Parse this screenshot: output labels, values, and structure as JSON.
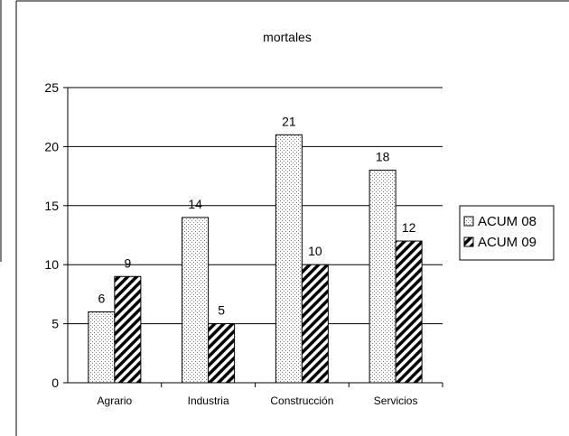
{
  "chart_data": {
    "type": "bar",
    "title": "mortales",
    "categories": [
      "Agrario",
      "Industria",
      "Construcción",
      "Servicios"
    ],
    "series": [
      {
        "name": "ACUM 08",
        "values": [
          6,
          14,
          21,
          18
        ],
        "pattern": "dotted"
      },
      {
        "name": "ACUM 09",
        "values": [
          9,
          5,
          10,
          12
        ],
        "pattern": "diagonal-hatch"
      }
    ],
    "ylim": [
      0,
      25
    ],
    "yticks": [
      0,
      5,
      10,
      15,
      20,
      25
    ],
    "grid": true,
    "legend_position": "right",
    "data_labels": true,
    "colors": {
      "bar_border": "#000000",
      "grid": "#000000",
      "background": "#ffffff"
    }
  }
}
